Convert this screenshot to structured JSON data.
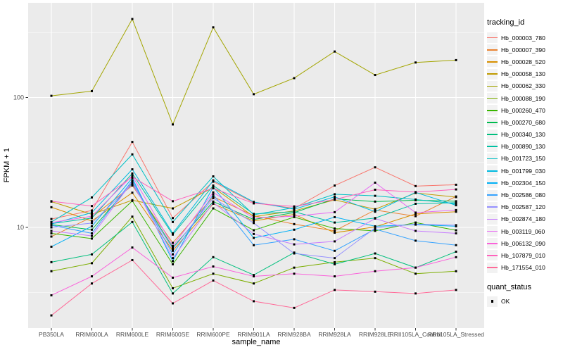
{
  "theme": {
    "background": "#FFFFFF",
    "panel_background": "#EBEBEB",
    "gridline_color": "#FFFFFF",
    "tick_mark_color": "#333333",
    "tick_label_color": "#4D4D4D",
    "axis_title_color": "#000000",
    "point_color": "#000000",
    "legend_key_background": "#F2F2F2"
  },
  "chart_data": {
    "type": "line",
    "title": "",
    "xlabel": "sample_name",
    "ylabel": "FPKM + 1",
    "y_scale": "log10",
    "ylim": [
      1.7,
      500
    ],
    "grid": true,
    "y_axis": {
      "ticks": [
        100,
        10
      ],
      "tick_labels": [
        "100",
        "10"
      ],
      "minor_gridlines": [
        316.23,
        31.623,
        3.1623
      ]
    },
    "categories": [
      "PB350LA",
      "RRIM600LA",
      "RRIM600LE",
      "RRIM600SE",
      "RRIM600PE",
      "RRIM901LA",
      "RRIM928BA",
      "RRIM928LA",
      "RRIM928LE",
      "RRII105LA_Control",
      "RRII105LA_Stressed"
    ],
    "legend": {
      "title": "tracking_id",
      "position": "right"
    },
    "legend2": {
      "title": "quant_status",
      "items": [
        {
          "label": "OK",
          "marker": "black-square"
        }
      ]
    },
    "series": [
      {
        "name": "Hb_000003_780",
        "color": "#F8766D",
        "values": [
          11.6,
          13.5,
          45.5,
          11.8,
          22.5,
          15.5,
          14.0,
          21.0,
          29.0,
          20.8,
          21.3
        ]
      },
      {
        "name": "Hb_000007_390",
        "color": "#EA8331",
        "values": [
          8.5,
          12.0,
          21.0,
          7.6,
          17.2,
          12.3,
          10.6,
          9.4,
          13.6,
          12.2,
          17.3
        ]
      },
      {
        "name": "Hb_000028_520",
        "color": "#D89000",
        "values": [
          14.3,
          11.2,
          18.5,
          6.6,
          15.2,
          11.2,
          12.6,
          9.1,
          10.1,
          12.7,
          13.2
        ]
      },
      {
        "name": "Hb_000058_130",
        "color": "#C09B00",
        "values": [
          15.8,
          12.6,
          16.2,
          14.0,
          20.3,
          12.1,
          13.4,
          16.3,
          13.8,
          18.4,
          17.1
        ]
      },
      {
        "name": "Hb_000062_330",
        "color": "#A3A500",
        "values": [
          103,
          112,
          402,
          62,
          347,
          106,
          141,
          226,
          149,
          186,
          194
        ]
      },
      {
        "name": "Hb_000088_190",
        "color": "#7CAE00",
        "values": [
          4.6,
          5.3,
          12.1,
          3.4,
          4.4,
          3.7,
          4.9,
          5.4,
          5.8,
          4.4,
          4.6
        ]
      },
      {
        "name": "Hb_000260_470",
        "color": "#39B600",
        "values": [
          9.0,
          8.2,
          16.0,
          5.2,
          14.0,
          9.5,
          12.0,
          9.8,
          9.4,
          10.9,
          9.5
        ]
      },
      {
        "name": "Hb_000270_680",
        "color": "#00BB4E",
        "values": [
          10.5,
          9.6,
          22.0,
          7.0,
          15.8,
          11.5,
          13.0,
          16.6,
          15.8,
          16.2,
          15.9
        ]
      },
      {
        "name": "Hb_000340_130",
        "color": "#00BF7D",
        "values": [
          5.4,
          6.2,
          11.0,
          3.1,
          5.9,
          4.3,
          6.4,
          5.2,
          6.3,
          4.9,
          6.5
        ]
      },
      {
        "name": "Hb_000890_130",
        "color": "#00C1A3",
        "values": [
          10.7,
          11.8,
          26.0,
          8.8,
          21.0,
          12.7,
          13.2,
          10.9,
          11.8,
          15.2,
          15.5
        ]
      },
      {
        "name": "Hb_001723_150",
        "color": "#00BFC4",
        "values": [
          11.0,
          17.0,
          36.5,
          11.0,
          24.7,
          12.5,
          14.2,
          18.0,
          17.5,
          16.4,
          15.2
        ]
      },
      {
        "name": "Hb_001799_030",
        "color": "#00BAE0",
        "values": [
          10.6,
          13.0,
          28.0,
          9.0,
          23.0,
          15.7,
          13.8,
          17.2,
          13.2,
          18.6,
          14.8
        ]
      },
      {
        "name": "Hb_002304_150",
        "color": "#00B0F6",
        "values": [
          7.1,
          10.2,
          24.0,
          5.5,
          20.5,
          8.3,
          9.6,
          12.0,
          10.2,
          10.5,
          10.2
        ]
      },
      {
        "name": "Hb_002586_080",
        "color": "#35A2FF",
        "values": [
          10.4,
          9.0,
          23.0,
          6.2,
          17.9,
          7.3,
          8.1,
          6.6,
          9.7,
          7.9,
          7.3
        ]
      },
      {
        "name": "Hb_002587_120",
        "color": "#9590FF",
        "values": [
          10.0,
          10.8,
          21.5,
          6.8,
          16.8,
          10.8,
          6.3,
          5.8,
          9.9,
          10.6,
          10.4
        ]
      },
      {
        "name": "Hb_002874_180",
        "color": "#C77CFF",
        "values": [
          9.4,
          8.6,
          22.5,
          5.8,
          15.5,
          8.9,
          7.4,
          7.8,
          11.7,
          9.4,
          9.0
        ]
      },
      {
        "name": "Hb_003119_060",
        "color": "#E76BF3",
        "values": [
          10.9,
          12.2,
          25.0,
          7.2,
          18.6,
          11.8,
          12.2,
          13.1,
          22.1,
          13.0,
          13.6
        ]
      },
      {
        "name": "Hb_006132_090",
        "color": "#FA62DB",
        "values": [
          3.0,
          4.2,
          7.0,
          4.1,
          5.0,
          4.2,
          4.4,
          4.2,
          4.6,
          4.9,
          5.9
        ]
      },
      {
        "name": "Hb_107879_010",
        "color": "#FF62BC",
        "values": [
          15.9,
          14.6,
          24.5,
          15.9,
          20.0,
          15.3,
          14.5,
          16.4,
          19.5,
          18.7,
          19.6
        ]
      },
      {
        "name": "Hb_171554_010",
        "color": "#FF6A98",
        "values": [
          2.1,
          3.7,
          5.6,
          2.6,
          3.9,
          2.7,
          2.4,
          3.3,
          3.2,
          3.1,
          3.3
        ]
      }
    ]
  }
}
